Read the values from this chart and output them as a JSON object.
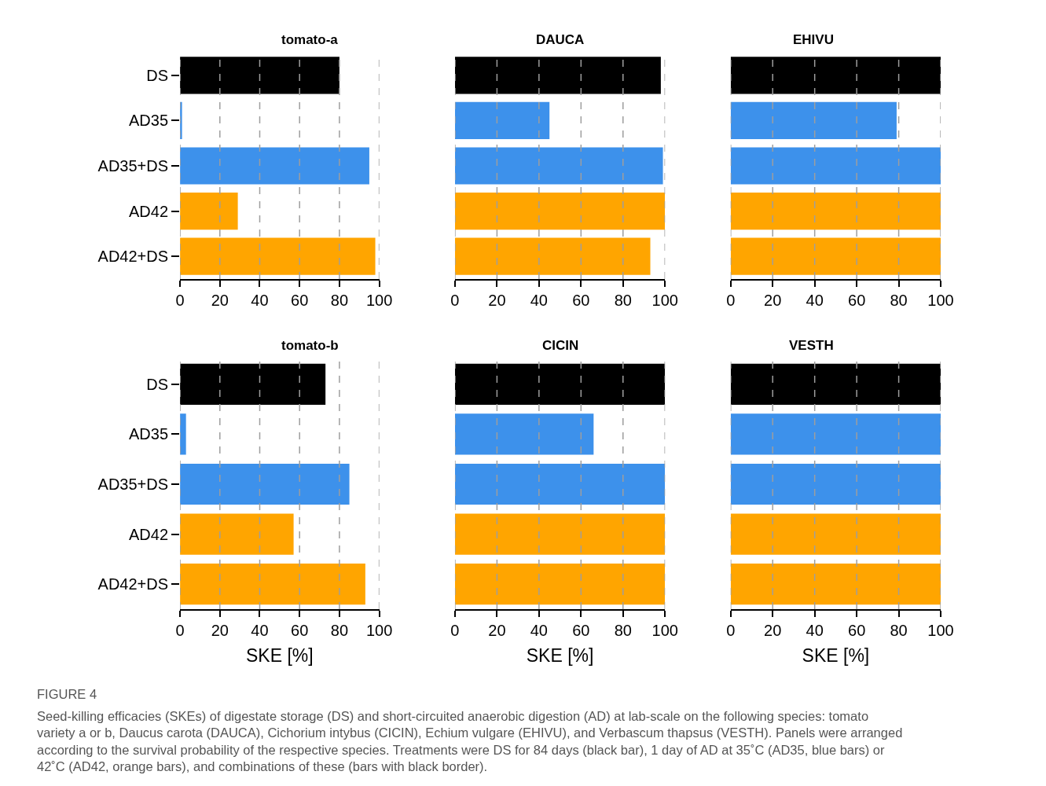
{
  "chart_data": [
    {
      "type": "bar",
      "orientation": "horizontal",
      "title": "tomato-a",
      "categories": [
        "DS",
        "AD35",
        "AD35+DS",
        "AD42",
        "AD42+DS"
      ],
      "values": [
        80,
        1,
        95,
        29,
        98
      ],
      "colors": [
        "#000000",
        "#3d91eb",
        "#3d91eb",
        "#ffa500",
        "#ffa500"
      ],
      "xlim": [
        0,
        100
      ],
      "xticks": [
        0,
        20,
        40,
        60,
        80,
        100
      ],
      "grid": "x"
    },
    {
      "type": "bar",
      "orientation": "horizontal",
      "title": "DAUCA",
      "categories": [
        null,
        null,
        null,
        null,
        null
      ],
      "values": [
        98,
        45,
        99,
        100,
        93
      ],
      "colors": [
        "#000000",
        "#3d91eb",
        "#3d91eb",
        "#ffa500",
        "#ffa500"
      ],
      "xlim": [
        0,
        100
      ],
      "xticks": [
        0,
        20,
        40,
        60,
        80,
        100
      ],
      "grid": "x",
      "tick_labels": "x"
    },
    {
      "type": "bar",
      "orientation": "horizontal",
      "title": "EHIVU",
      "categories": [
        null,
        null,
        null,
        null,
        null
      ],
      "values": [
        100,
        79,
        100,
        100,
        100
      ],
      "colors": [
        "#000000",
        "#3d91eb",
        "#3d91eb",
        "#ffa500",
        "#ffa500"
      ],
      "xlim": [
        0,
        100
      ],
      "xticks": [
        0,
        20,
        40,
        60,
        80,
        100
      ],
      "grid": "x",
      "tick_labels": "x"
    },
    {
      "type": "bar",
      "orientation": "horizontal",
      "title": "tomato-b",
      "xlabel": "SKE [%]",
      "categories": [
        "DS",
        "AD35",
        "AD35+DS",
        "AD42",
        "AD42+DS"
      ],
      "values": [
        73,
        3,
        85,
        57,
        93
      ],
      "colors": [
        "#000000",
        "#3d91eb",
        "#3d91eb",
        "#ffa500",
        "#ffa500"
      ],
      "xlim": [
        0,
        100
      ],
      "xticks": [
        0,
        20,
        40,
        60,
        80,
        100
      ],
      "grid": "x"
    },
    {
      "type": "bar",
      "orientation": "horizontal",
      "title": "CICIN",
      "xlabel": "SKE [%]",
      "categories": [
        null,
        null,
        null,
        null,
        null
      ],
      "values": [
        100,
        66,
        100,
        100,
        100
      ],
      "colors": [
        "#000000",
        "#3d91eb",
        "#3d91eb",
        "#ffa500",
        "#ffa500"
      ],
      "xlim": [
        0,
        100
      ],
      "xticks": [
        0,
        20,
        40,
        60,
        80,
        100
      ],
      "grid": "x",
      "tick_labels": "x"
    },
    {
      "type": "bar",
      "orientation": "horizontal",
      "title": "VESTH",
      "xlabel": "SKE [%]",
      "categories": [
        null,
        null,
        null,
        null,
        null
      ],
      "values": [
        100,
        100,
        100,
        100,
        100
      ],
      "colors": [
        "#000000",
        "#3d91eb",
        "#3d91eb",
        "#ffa500",
        "#ffa500"
      ],
      "xlim": [
        0,
        100
      ],
      "xticks": [
        0,
        20,
        40,
        60,
        80,
        100
      ],
      "grid": "x",
      "tick_labels": "x",
      "annotations": [
        "FIGURE 4",
        "Seed-killing efficacies (SKEs) of digestate storage (DS) and short-circuited anaerobic digestion (AD) at lab-scale on the following species: tomato variety a or b, Daucus carota (DAUCA), Cichorium intybus (CICIN), Echium vulgare (EHIVU), and Verbascum thapsus (VESTH). Panels were arranged according to the survival probability of the respective species. Treatments were DS for 84 days (black bar), 1 day of AD at 35˚C (AD35, blue bars) or 42˚C (AD42, orange bars), and combinations of these (bars with black border)."
      ]
    }
  ]
}
